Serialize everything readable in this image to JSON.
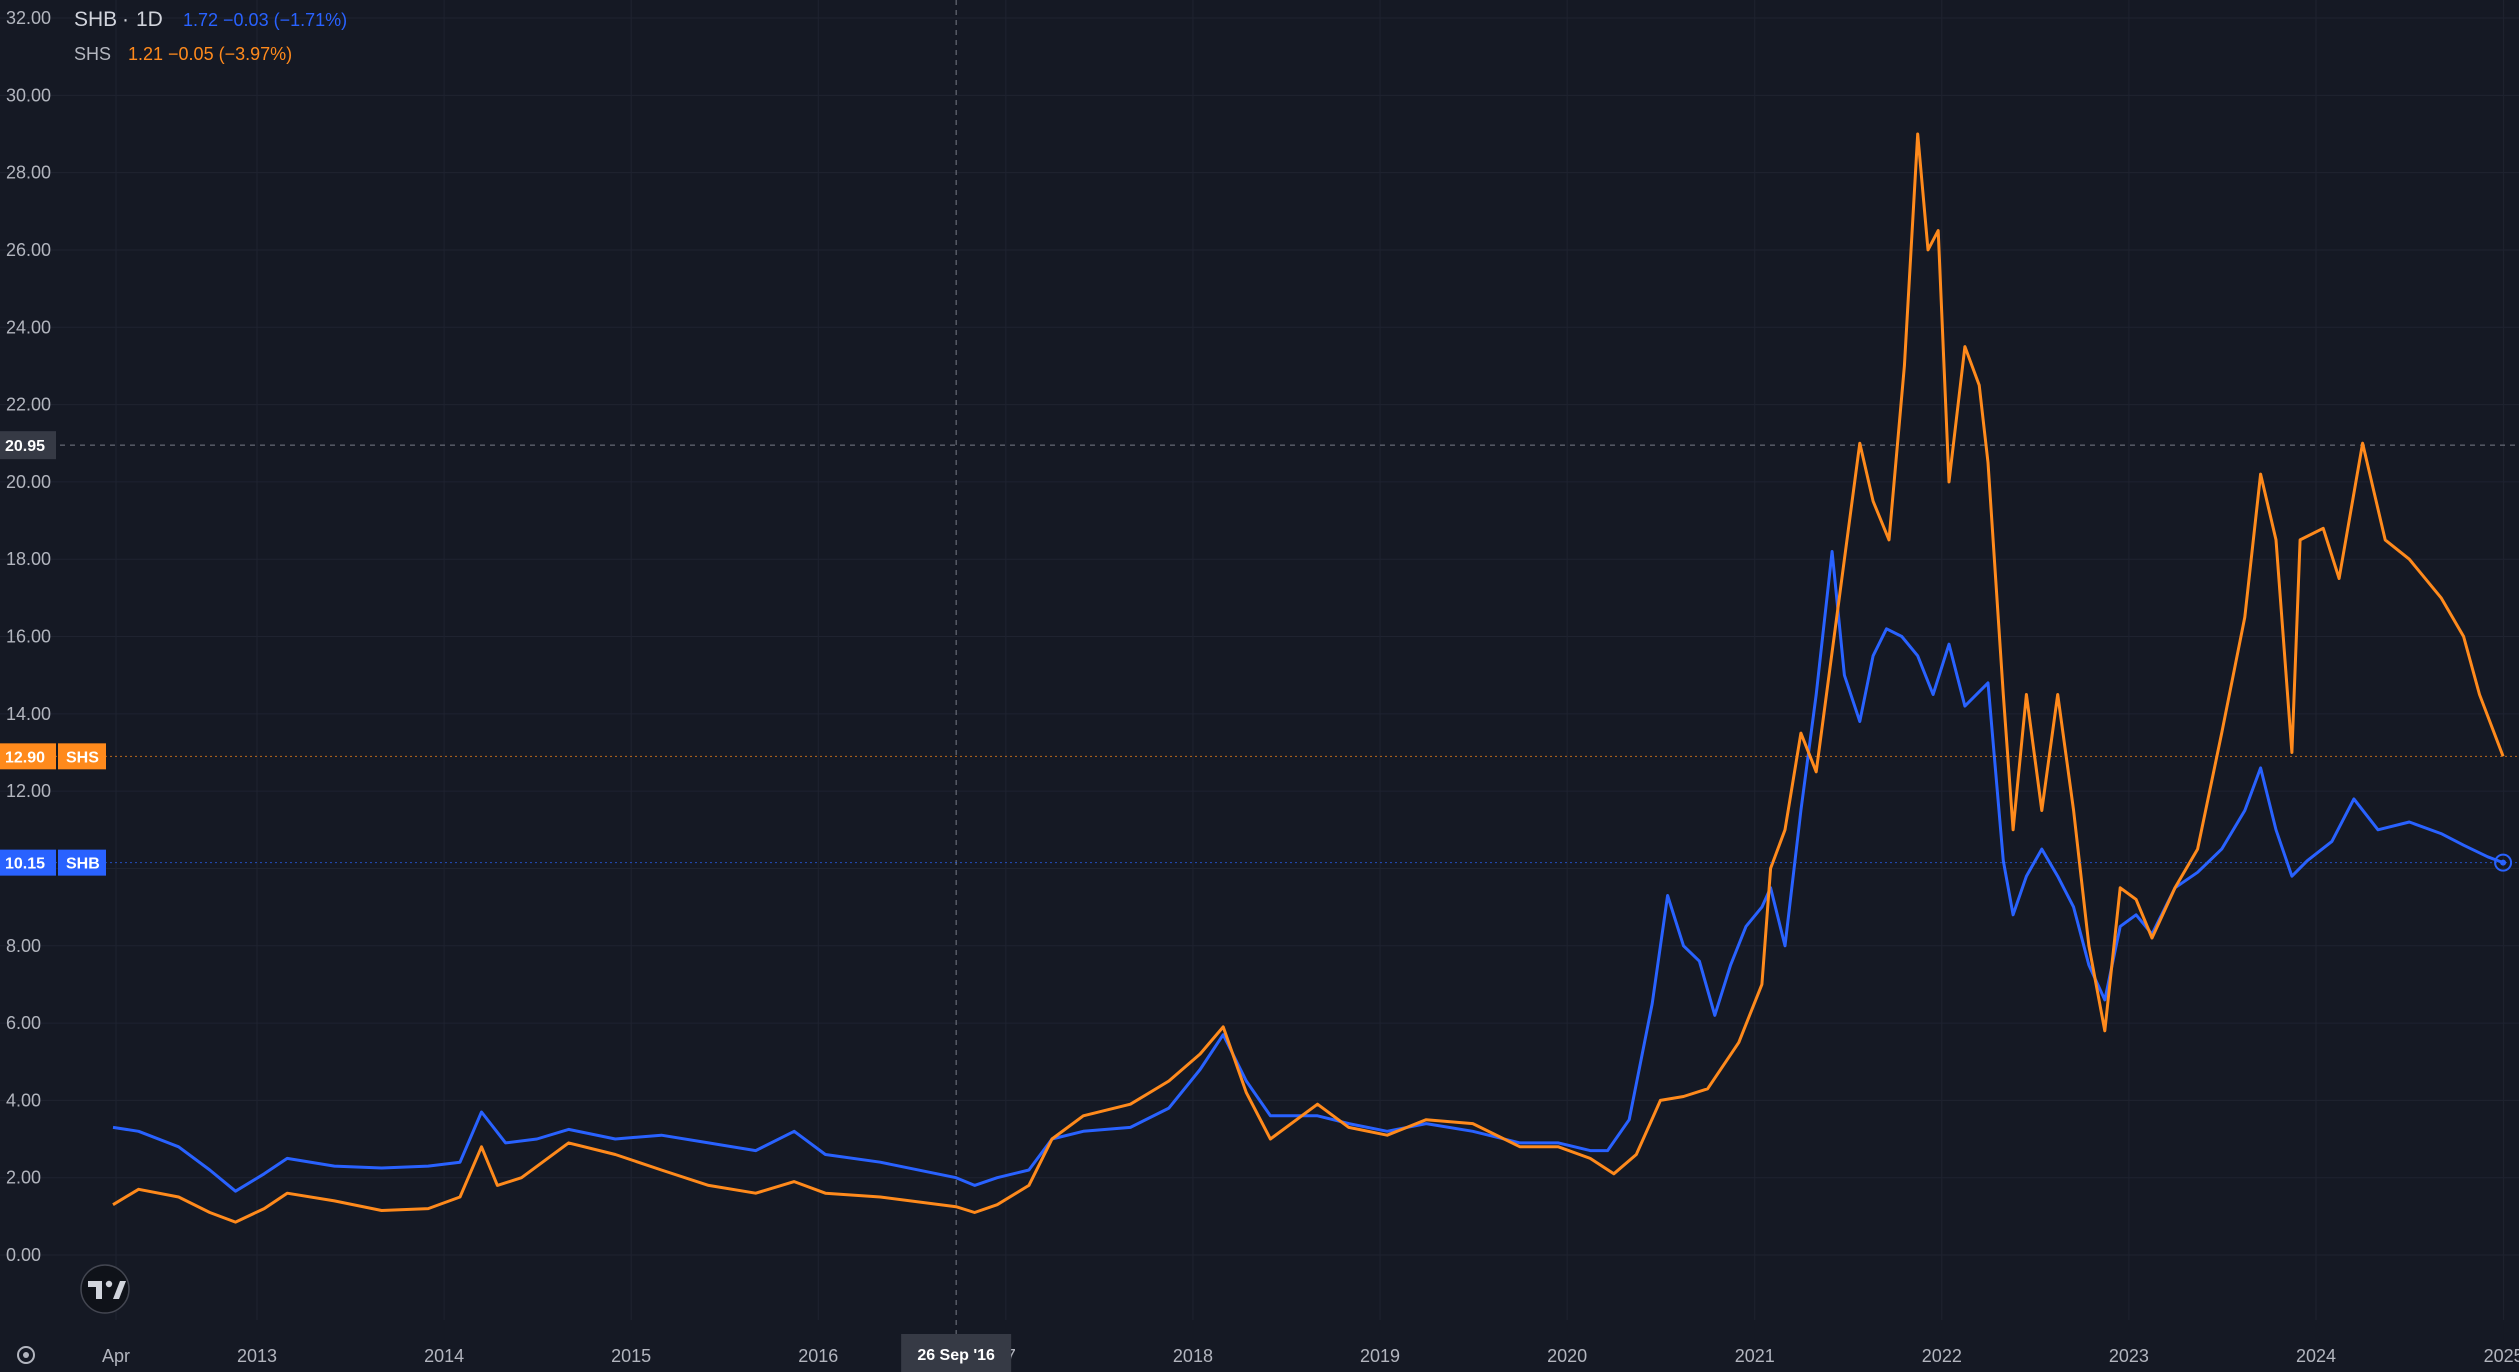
{
  "chart_data": {
    "type": "line",
    "interval": "1D",
    "theme": "dark",
    "ylim": [
      0,
      32
    ],
    "yticks": [
      "0.00",
      "2.00",
      "4.00",
      "6.00",
      "8.00",
      "10.00",
      "12.00",
      "14.00",
      "16.00",
      "18.00",
      "20.00",
      "22.00",
      "24.00",
      "26.00",
      "28.00",
      "30.00",
      "32.00"
    ],
    "xticks": [
      {
        "label": "Apr",
        "date": "2012-04-01"
      },
      {
        "label": "2013",
        "date": "2013-01-01"
      },
      {
        "label": "2014",
        "date": "2014-01-01"
      },
      {
        "label": "2015",
        "date": "2015-01-01"
      },
      {
        "label": "2016",
        "date": "2016-01-01"
      },
      {
        "label": "17",
        "date": "2017-01-01"
      },
      {
        "label": "2018",
        "date": "2018-01-01"
      },
      {
        "label": "2019",
        "date": "2019-01-01"
      },
      {
        "label": "2020",
        "date": "2020-01-01"
      },
      {
        "label": "2021",
        "date": "2021-01-01"
      },
      {
        "label": "2022",
        "date": "2022-01-01"
      },
      {
        "label": "2023",
        "date": "2023-01-01"
      },
      {
        "label": "2024",
        "date": "2024-01-01"
      },
      {
        "label": "2025",
        "date": "2025-01-01"
      }
    ],
    "x_range": [
      "2012-03-01",
      "2025-01-01"
    ],
    "crosshair": {
      "date": "2016-09-26",
      "x_label": "26 Sep '16",
      "y_value": 20.95,
      "y_label": "20.95"
    },
    "series": [
      {
        "name": "SHB",
        "color": "#2962ff",
        "legend_values": "1.72 −0.03 (−1.71%)",
        "last_label": "10.15",
        "last_value": 10.15,
        "points": [
          [
            "2012-03-26",
            3.3
          ],
          [
            "2012-05-15",
            3.2
          ],
          [
            "2012-08-01",
            2.8
          ],
          [
            "2012-10-01",
            2.2
          ],
          [
            "2012-11-20",
            1.65
          ],
          [
            "2013-01-15",
            2.1
          ],
          [
            "2013-03-01",
            2.5
          ],
          [
            "2013-06-01",
            2.3
          ],
          [
            "2013-09-01",
            2.25
          ],
          [
            "2013-12-01",
            2.3
          ],
          [
            "2014-02-01",
            2.4
          ],
          [
            "2014-03-15",
            3.7
          ],
          [
            "2014-05-01",
            2.9
          ],
          [
            "2014-07-01",
            3.0
          ],
          [
            "2014-09-01",
            3.25
          ],
          [
            "2014-12-01",
            3.0
          ],
          [
            "2015-03-01",
            3.1
          ],
          [
            "2015-06-01",
            2.9
          ],
          [
            "2015-09-01",
            2.7
          ],
          [
            "2015-11-15",
            3.2
          ],
          [
            "2016-01-15",
            2.6
          ],
          [
            "2016-05-01",
            2.4
          ],
          [
            "2016-09-26",
            2.0
          ],
          [
            "2016-11-01",
            1.8
          ],
          [
            "2016-12-15",
            2.0
          ],
          [
            "2017-02-15",
            2.2
          ],
          [
            "2017-04-01",
            3.0
          ],
          [
            "2017-06-01",
            3.2
          ],
          [
            "2017-09-01",
            3.3
          ],
          [
            "2017-11-15",
            3.8
          ],
          [
            "2018-01-15",
            4.8
          ],
          [
            "2018-03-01",
            5.7
          ],
          [
            "2018-04-15",
            4.5
          ],
          [
            "2018-06-01",
            3.6
          ],
          [
            "2018-09-01",
            3.6
          ],
          [
            "2018-11-01",
            3.4
          ],
          [
            "2019-01-15",
            3.2
          ],
          [
            "2019-04-01",
            3.4
          ],
          [
            "2019-07-01",
            3.2
          ],
          [
            "2019-10-01",
            2.9
          ],
          [
            "2019-12-15",
            2.9
          ],
          [
            "2020-02-15",
            2.7
          ],
          [
            "2020-03-20",
            2.7
          ],
          [
            "2020-05-01",
            3.5
          ],
          [
            "2020-06-15",
            6.5
          ],
          [
            "2020-07-15",
            9.3
          ],
          [
            "2020-08-15",
            8.0
          ],
          [
            "2020-09-15",
            7.6
          ],
          [
            "2020-10-15",
            6.2
          ],
          [
            "2020-11-15",
            7.5
          ],
          [
            "2020-12-15",
            8.5
          ],
          [
            "2021-01-15",
            9.0
          ],
          [
            "2021-02-01",
            9.5
          ],
          [
            "2021-03-01",
            8.0
          ],
          [
            "2021-04-01",
            11.5
          ],
          [
            "2021-05-01",
            14.5
          ],
          [
            "2021-06-01",
            18.2
          ],
          [
            "2021-06-25",
            15.0
          ],
          [
            "2021-07-25",
            13.8
          ],
          [
            "2021-08-20",
            15.5
          ],
          [
            "2021-09-15",
            16.2
          ],
          [
            "2021-10-15",
            16.0
          ],
          [
            "2021-11-15",
            15.5
          ],
          [
            "2021-12-15",
            14.5
          ],
          [
            "2022-01-15",
            15.8
          ],
          [
            "2022-02-15",
            14.2
          ],
          [
            "2022-04-01",
            14.8
          ],
          [
            "2022-05-01",
            10.2
          ],
          [
            "2022-05-20",
            8.8
          ],
          [
            "2022-06-15",
            9.8
          ],
          [
            "2022-07-15",
            10.5
          ],
          [
            "2022-08-15",
            9.8
          ],
          [
            "2022-09-15",
            9.0
          ],
          [
            "2022-10-15",
            7.5
          ],
          [
            "2022-11-15",
            6.6
          ],
          [
            "2022-12-15",
            8.5
          ],
          [
            "2023-01-15",
            8.8
          ],
          [
            "2023-02-15",
            8.3
          ],
          [
            "2023-04-01",
            9.5
          ],
          [
            "2023-05-15",
            9.9
          ],
          [
            "2023-07-01",
            10.5
          ],
          [
            "2023-08-15",
            11.5
          ],
          [
            "2023-09-15",
            12.6
          ],
          [
            "2023-10-15",
            11.0
          ],
          [
            "2023-11-15",
            9.8
          ],
          [
            "2023-12-15",
            10.2
          ],
          [
            "2024-02-01",
            10.7
          ],
          [
            "2024-03-15",
            11.8
          ],
          [
            "2024-05-01",
            11.0
          ],
          [
            "2024-07-01",
            11.2
          ],
          [
            "2024-09-01",
            10.9
          ],
          [
            "2024-10-15",
            10.6
          ],
          [
            "2024-12-01",
            10.3
          ],
          [
            "2024-12-31",
            10.15
          ]
        ]
      },
      {
        "name": "SHS",
        "color": "#ff8a1c",
        "legend_values": "1.21 −0.05 (−3.97%)",
        "last_label": "12.90",
        "last_value": 12.9,
        "points": [
          [
            "2012-03-26",
            1.3
          ],
          [
            "2012-05-15",
            1.7
          ],
          [
            "2012-08-01",
            1.5
          ],
          [
            "2012-10-01",
            1.1
          ],
          [
            "2012-11-20",
            0.85
          ],
          [
            "2013-01-15",
            1.2
          ],
          [
            "2013-03-01",
            1.6
          ],
          [
            "2013-06-01",
            1.4
          ],
          [
            "2013-09-01",
            1.15
          ],
          [
            "2013-12-01",
            1.2
          ],
          [
            "2014-02-01",
            1.5
          ],
          [
            "2014-03-15",
            2.8
          ],
          [
            "2014-04-15",
            1.8
          ],
          [
            "2014-06-01",
            2.0
          ],
          [
            "2014-09-01",
            2.9
          ],
          [
            "2014-12-01",
            2.6
          ],
          [
            "2015-03-01",
            2.2
          ],
          [
            "2015-06-01",
            1.8
          ],
          [
            "2015-09-01",
            1.6
          ],
          [
            "2015-11-15",
            1.9
          ],
          [
            "2016-01-15",
            1.6
          ],
          [
            "2016-05-01",
            1.5
          ],
          [
            "2016-09-26",
            1.25
          ],
          [
            "2016-11-01",
            1.1
          ],
          [
            "2016-12-15",
            1.3
          ],
          [
            "2017-02-15",
            1.8
          ],
          [
            "2017-04-01",
            3.0
          ],
          [
            "2017-06-01",
            3.6
          ],
          [
            "2017-09-01",
            3.9
          ],
          [
            "2017-11-15",
            4.5
          ],
          [
            "2018-01-15",
            5.2
          ],
          [
            "2018-03-01",
            5.9
          ],
          [
            "2018-04-15",
            4.2
          ],
          [
            "2018-06-01",
            3.0
          ],
          [
            "2018-09-01",
            3.9
          ],
          [
            "2018-11-01",
            3.3
          ],
          [
            "2019-01-15",
            3.1
          ],
          [
            "2019-04-01",
            3.5
          ],
          [
            "2019-07-01",
            3.4
          ],
          [
            "2019-10-01",
            2.8
          ],
          [
            "2019-12-15",
            2.8
          ],
          [
            "2020-02-15",
            2.5
          ],
          [
            "2020-04-01",
            2.1
          ],
          [
            "2020-05-15",
            2.6
          ],
          [
            "2020-07-01",
            4.0
          ],
          [
            "2020-08-15",
            4.1
          ],
          [
            "2020-10-01",
            4.3
          ],
          [
            "2020-12-01",
            5.5
          ],
          [
            "2021-01-15",
            7.0
          ],
          [
            "2021-02-01",
            10.0
          ],
          [
            "2021-03-01",
            11.0
          ],
          [
            "2021-04-01",
            13.5
          ],
          [
            "2021-05-01",
            12.5
          ],
          [
            "2021-06-15",
            17.0
          ],
          [
            "2021-07-25",
            21.0
          ],
          [
            "2021-08-20",
            19.5
          ],
          [
            "2021-09-20",
            18.5
          ],
          [
            "2021-10-20",
            23.0
          ],
          [
            "2021-11-15",
            29.0
          ],
          [
            "2021-12-05",
            26.0
          ],
          [
            "2021-12-25",
            26.5
          ],
          [
            "2022-01-15",
            20.0
          ],
          [
            "2022-02-15",
            23.5
          ],
          [
            "2022-03-15",
            22.5
          ],
          [
            "2022-04-01",
            20.5
          ],
          [
            "2022-05-01",
            14.5
          ],
          [
            "2022-05-20",
            11.0
          ],
          [
            "2022-06-15",
            14.5
          ],
          [
            "2022-07-15",
            11.5
          ],
          [
            "2022-08-15",
            14.5
          ],
          [
            "2022-09-15",
            11.5
          ],
          [
            "2022-10-15",
            8.0
          ],
          [
            "2022-11-15",
            5.8
          ],
          [
            "2022-12-15",
            9.5
          ],
          [
            "2023-01-15",
            9.2
          ],
          [
            "2023-02-15",
            8.2
          ],
          [
            "2023-04-01",
            9.5
          ],
          [
            "2023-05-15",
            10.5
          ],
          [
            "2023-07-01",
            13.5
          ],
          [
            "2023-08-15",
            16.5
          ],
          [
            "2023-09-15",
            20.2
          ],
          [
            "2023-10-15",
            18.5
          ],
          [
            "2023-11-15",
            13.0
          ],
          [
            "2023-12-01",
            18.5
          ],
          [
            "2024-01-15",
            18.8
          ],
          [
            "2024-02-15",
            17.5
          ],
          [
            "2024-04-01",
            21.0
          ],
          [
            "2024-05-15",
            18.5
          ],
          [
            "2024-07-01",
            18.0
          ],
          [
            "2024-09-01",
            17.0
          ],
          [
            "2024-10-15",
            16.0
          ],
          [
            "2024-11-15",
            14.5
          ],
          [
            "2024-12-31",
            12.9
          ]
        ]
      }
    ]
  }
}
